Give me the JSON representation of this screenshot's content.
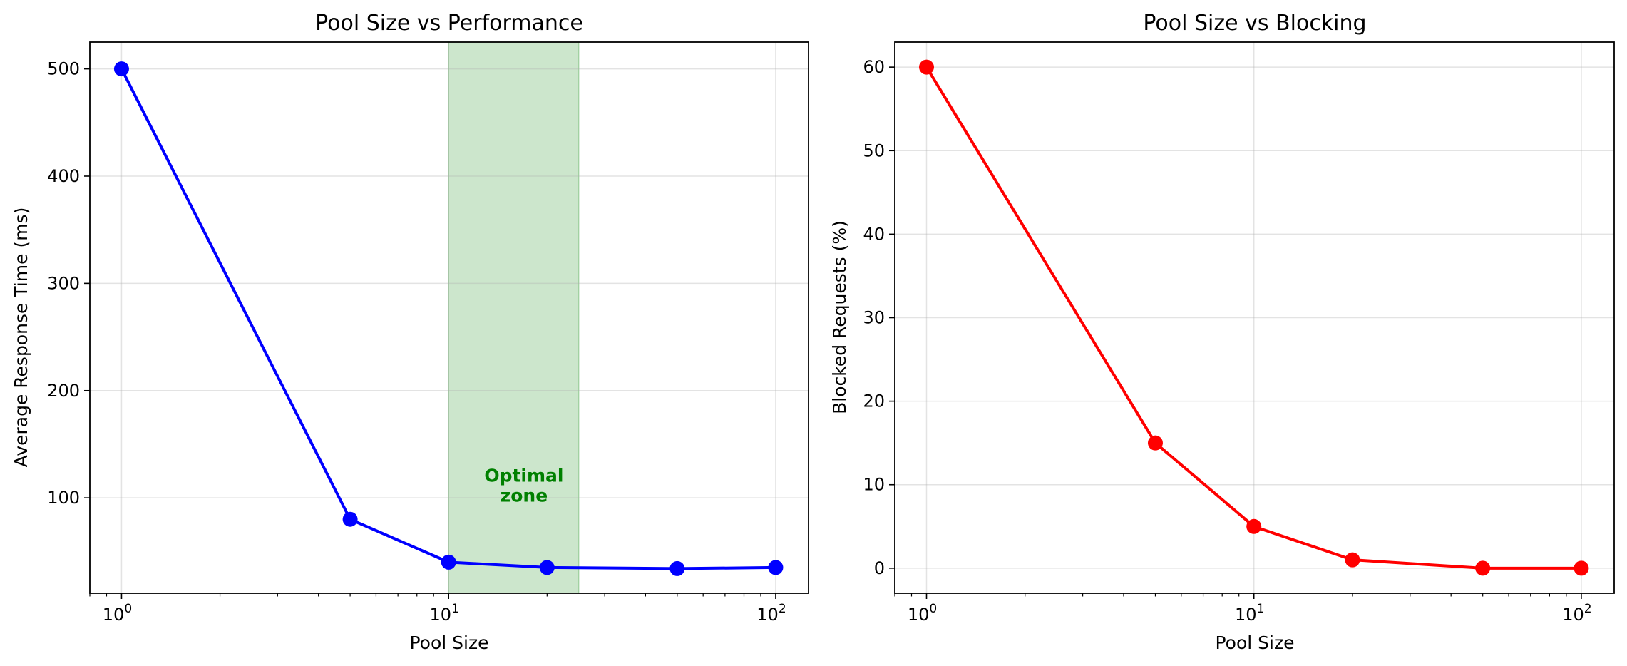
{
  "chart_data": [
    {
      "type": "line",
      "title": "Pool Size vs Performance",
      "xlabel": "Pool Size",
      "ylabel": "Average Response Time (ms)",
      "xscale": "log",
      "xlim": [
        0.8,
        126
      ],
      "ylim": [
        11,
        525
      ],
      "xticks": [
        1,
        10,
        100
      ],
      "yticks": [
        100,
        200,
        300,
        400,
        500
      ],
      "grid": true,
      "color": "#0000ff",
      "marker": "circle",
      "x": [
        1,
        5,
        10,
        20,
        50,
        100
      ],
      "y": [
        500,
        80,
        40,
        35,
        34,
        35
      ],
      "shaded_region": {
        "x_range": [
          10,
          25
        ],
        "color": "#008000",
        "label_lines": [
          "Optimal",
          "zone"
        ],
        "label_color": "#008000",
        "label_x": 17,
        "label_y": 111
      }
    },
    {
      "type": "line",
      "title": "Pool Size vs Blocking",
      "xlabel": "Pool Size",
      "ylabel": "Blocked Requests (%)",
      "xscale": "log",
      "xlim": [
        0.8,
        126
      ],
      "ylim": [
        -3,
        63
      ],
      "xticks": [
        1,
        10,
        100
      ],
      "yticks": [
        0,
        10,
        20,
        30,
        40,
        50,
        60
      ],
      "grid": true,
      "color": "#ff0000",
      "marker": "circle",
      "x": [
        1,
        5,
        10,
        20,
        50,
        100
      ],
      "y": [
        60,
        15,
        5,
        1,
        0,
        0
      ]
    }
  ]
}
